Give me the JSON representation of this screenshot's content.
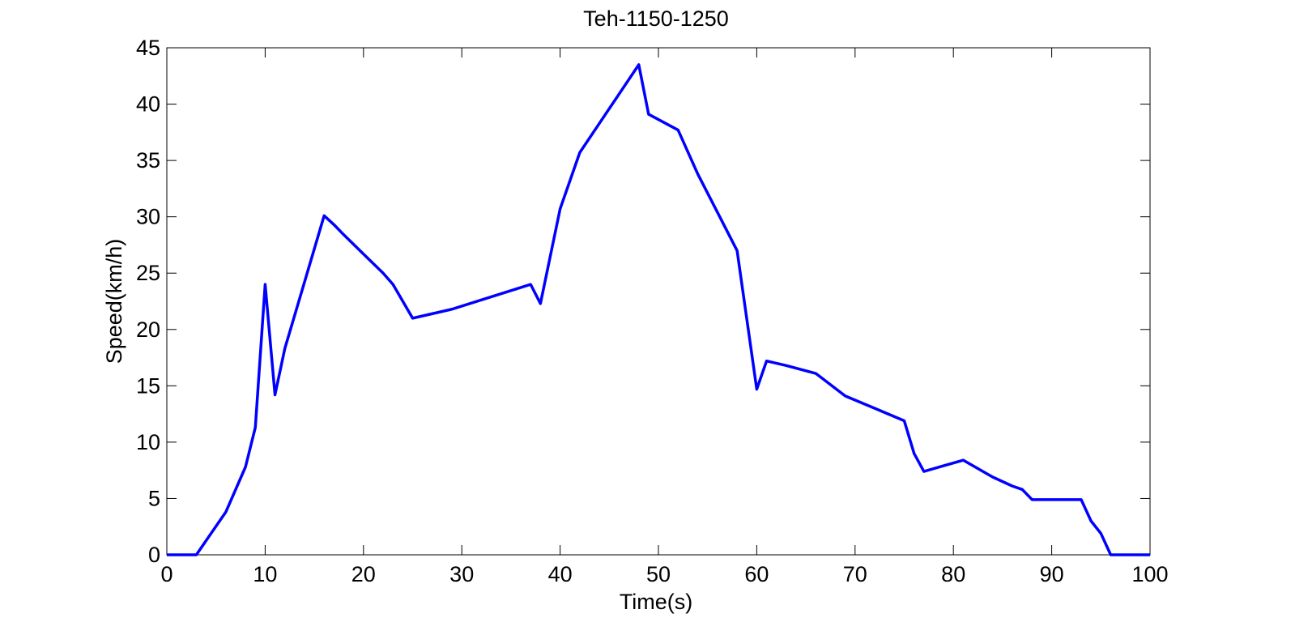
{
  "chart_data": {
    "type": "line",
    "title": "Teh-1150-1250",
    "xlabel": "Time(s)",
    "ylabel": "Speed(km/h)",
    "xlim": [
      0,
      100
    ],
    "ylim": [
      0,
      45
    ],
    "xticks": [
      0,
      10,
      20,
      30,
      40,
      50,
      60,
      70,
      80,
      90,
      100
    ],
    "yticks": [
      0,
      5,
      10,
      15,
      20,
      25,
      30,
      35,
      40,
      45
    ],
    "grid": false,
    "line_color": "#0000ff",
    "series": [
      {
        "x": [
          0,
          3,
          6,
          8,
          9,
          10,
          11,
          12,
          14,
          16,
          17,
          18,
          20,
          22,
          23,
          25,
          29,
          33,
          37,
          38,
          40,
          42,
          44,
          46,
          48,
          49,
          52,
          54,
          56,
          58,
          60,
          61,
          63,
          66,
          69,
          72,
          75,
          76,
          77,
          79,
          81,
          84,
          86,
          87,
          88,
          90,
          93,
          94,
          95,
          96,
          100
        ],
        "y": [
          0,
          0,
          3.8,
          7.8,
          11.3,
          24.0,
          14.2,
          18.3,
          24.2,
          30.1,
          29.3,
          28.4,
          26.7,
          25.0,
          24.0,
          21.0,
          21.8,
          22.9,
          24.0,
          22.3,
          30.7,
          35.7,
          38.3,
          40.9,
          43.5,
          39.1,
          37.7,
          33.8,
          30.4,
          27.0,
          14.7,
          17.2,
          16.8,
          16.1,
          14.1,
          13.0,
          11.9,
          9.0,
          7.4,
          7.9,
          8.4,
          6.9,
          6.1,
          5.8,
          4.9,
          4.9,
          4.9,
          3.0,
          1.9,
          0,
          0
        ]
      }
    ]
  }
}
